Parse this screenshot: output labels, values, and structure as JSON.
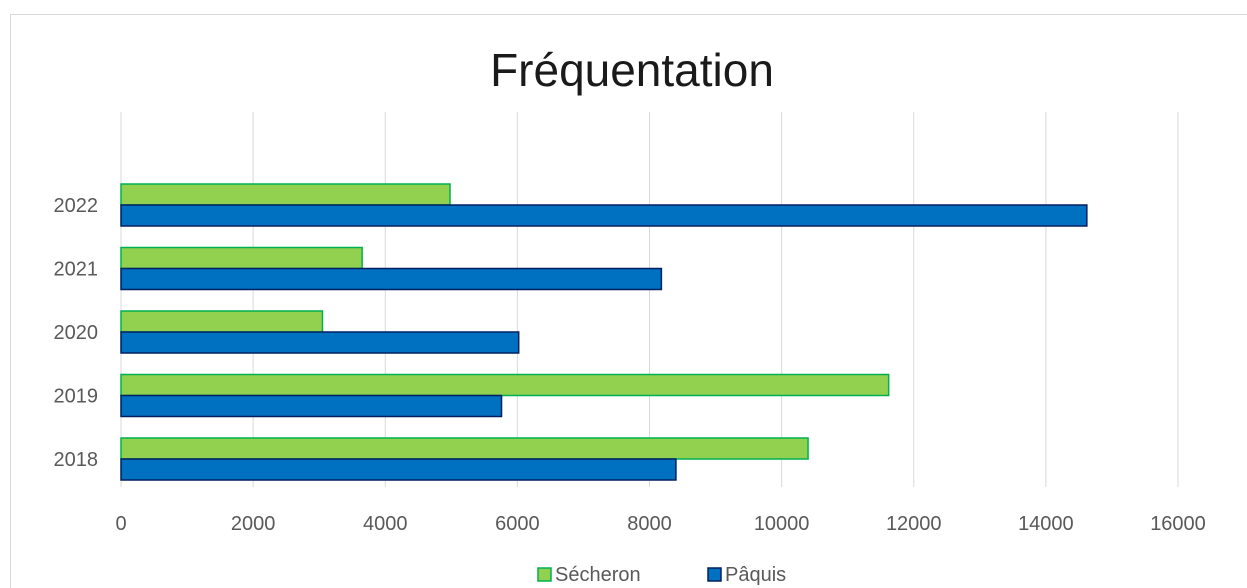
{
  "chart_data": {
    "type": "bar",
    "orientation": "horizontal",
    "title": "Fréquentation",
    "categories": [
      "2018",
      "2019",
      "2020",
      "2021",
      "2022"
    ],
    "series": [
      {
        "name": "Sécheron",
        "values": [
          10400,
          11620,
          3050,
          3650,
          4980
        ],
        "color": "#92d050",
        "border": "#00b050"
      },
      {
        "name": "Pâquis",
        "values": [
          8400,
          5760,
          6020,
          8180,
          14620
        ],
        "color": "#0070c0",
        "border": "#002060"
      }
    ],
    "xlim": [
      0,
      16000
    ],
    "xticks": [
      "0",
      "2000",
      "4000",
      "6000",
      "8000",
      "10000",
      "12000",
      "14000",
      "16000"
    ],
    "grid": true,
    "legend": "bottom"
  }
}
